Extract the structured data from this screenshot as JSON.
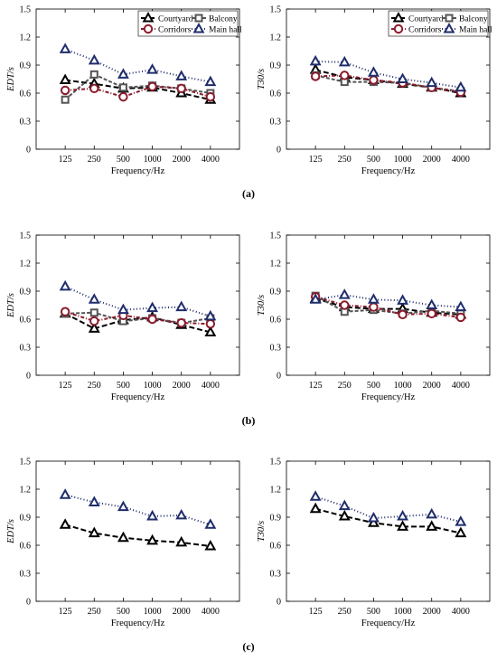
{
  "figure": {
    "panel_labels": [
      "(a)",
      "(b)",
      "(c)"
    ]
  },
  "styles": {
    "Courtyard": {
      "color": "#000000",
      "dash": "6,3",
      "marker": "triangle-open"
    },
    "Balcony": {
      "color": "#555555",
      "dash": "4,2",
      "marker": "square-open"
    },
    "Corridors": {
      "color": "#8b1a2b",
      "dash": "4,2,1,2",
      "marker": "circle-open"
    },
    "Main hall": {
      "color": "#1f2d6b",
      "dash": "1,2.5",
      "marker": "triangle-open"
    }
  },
  "chart_data": [
    {
      "type": "line",
      "panel": "(a)",
      "xlabel": "Frequency/Hz",
      "ylabel": "EDT/s",
      "categories": [
        "125",
        "250",
        "500",
        "1000",
        "2000",
        "4000"
      ],
      "ylim": [
        0,
        1.5
      ],
      "yticks": [
        "0",
        "0.3",
        "0.6",
        "0.9",
        "1.2",
        "1.5"
      ],
      "grid": false,
      "legend": "top-right",
      "series": [
        {
          "name": "Courtyard",
          "values": [
            0.74,
            0.7,
            0.65,
            0.66,
            0.6,
            0.53
          ]
        },
        {
          "name": "Balcony",
          "values": [
            0.53,
            0.8,
            0.66,
            0.68,
            0.65,
            0.6
          ]
        },
        {
          "name": "Corridors",
          "values": [
            0.63,
            0.65,
            0.56,
            0.67,
            0.65,
            0.56
          ]
        },
        {
          "name": "Main hall",
          "values": [
            1.07,
            0.95,
            0.8,
            0.85,
            0.78,
            0.72
          ]
        }
      ]
    },
    {
      "type": "line",
      "panel": "(a)",
      "xlabel": "Frequency/Hz",
      "ylabel": "T30/s",
      "categories": [
        "125",
        "250",
        "500",
        "1000",
        "2000",
        "4000"
      ],
      "ylim": [
        0,
        1.5
      ],
      "yticks": [
        "0",
        "0.3",
        "0.6",
        "0.9",
        "1.2",
        "1.5"
      ],
      "grid": false,
      "legend": "top-right",
      "series": [
        {
          "name": "Courtyard",
          "values": [
            0.85,
            0.77,
            0.74,
            0.7,
            0.66,
            0.6
          ]
        },
        {
          "name": "Balcony",
          "values": [
            0.79,
            0.72,
            0.72,
            0.71,
            0.66,
            0.62
          ]
        },
        {
          "name": "Corridors",
          "values": [
            0.78,
            0.79,
            0.74,
            0.71,
            0.66,
            0.61
          ]
        },
        {
          "name": "Main hall",
          "values": [
            0.94,
            0.93,
            0.82,
            0.75,
            0.71,
            0.66
          ]
        }
      ]
    },
    {
      "type": "line",
      "panel": "(b)",
      "xlabel": "Frequency/Hz",
      "ylabel": "EDT/s",
      "categories": [
        "125",
        "250",
        "500",
        "1000",
        "2000",
        "4000"
      ],
      "ylim": [
        0,
        1.5
      ],
      "yticks": [
        "0",
        "0.3",
        "0.6",
        "0.9",
        "1.2",
        "1.5"
      ],
      "grid": false,
      "series": [
        {
          "name": "Courtyard",
          "values": [
            0.66,
            0.5,
            0.59,
            0.62,
            0.54,
            0.46
          ]
        },
        {
          "name": "Balcony",
          "values": [
            0.66,
            0.67,
            0.58,
            0.61,
            0.56,
            0.61
          ]
        },
        {
          "name": "Corridors",
          "values": [
            0.68,
            0.58,
            0.64,
            0.6,
            0.56,
            0.55
          ]
        },
        {
          "name": "Main hall",
          "values": [
            0.95,
            0.81,
            0.7,
            0.72,
            0.73,
            0.63
          ]
        }
      ]
    },
    {
      "type": "line",
      "panel": "(b)",
      "xlabel": "Frequency/Hz",
      "ylabel": "T30/s",
      "categories": [
        "125",
        "250",
        "500",
        "1000",
        "2000",
        "4000"
      ],
      "ylim": [
        0,
        1.5
      ],
      "yticks": [
        "0",
        "0.3",
        "0.6",
        "0.9",
        "1.2",
        "1.5"
      ],
      "grid": false,
      "series": [
        {
          "name": "Courtyard",
          "values": [
            0.82,
            0.73,
            0.71,
            0.71,
            0.67,
            0.65
          ]
        },
        {
          "name": "Balcony",
          "values": [
            0.85,
            0.68,
            0.7,
            0.66,
            0.69,
            0.66
          ]
        },
        {
          "name": "Corridors",
          "values": [
            0.84,
            0.75,
            0.73,
            0.65,
            0.66,
            0.62
          ]
        },
        {
          "name": "Main hall",
          "values": [
            0.81,
            0.86,
            0.81,
            0.8,
            0.75,
            0.73
          ]
        }
      ]
    },
    {
      "type": "line",
      "panel": "(c)",
      "xlabel": "Frequency/Hz",
      "ylabel": "EDT/s",
      "categories": [
        "125",
        "250",
        "500",
        "1000",
        "2000",
        "4000"
      ],
      "ylim": [
        0,
        1.5
      ],
      "yticks": [
        "0",
        "0.3",
        "0.6",
        "0.9",
        "1.2",
        "1.5"
      ],
      "grid": false,
      "series": [
        {
          "name": "Courtyard",
          "values": [
            0.82,
            0.73,
            0.68,
            0.65,
            0.63,
            0.59
          ]
        },
        {
          "name": "Main hall",
          "values": [
            1.14,
            1.06,
            1.01,
            0.91,
            0.92,
            0.82
          ]
        }
      ]
    },
    {
      "type": "line",
      "panel": "(c)",
      "xlabel": "Frequency/Hz",
      "ylabel": "T30/s",
      "categories": [
        "125",
        "250",
        "500",
        "1000",
        "2000",
        "4000"
      ],
      "ylim": [
        0,
        1.5
      ],
      "yticks": [
        "0",
        "0.3",
        "0.6",
        "0.9",
        "1.2",
        "1.5"
      ],
      "grid": false,
      "series": [
        {
          "name": "Courtyard",
          "values": [
            0.99,
            0.91,
            0.84,
            0.8,
            0.8,
            0.73
          ]
        },
        {
          "name": "Main hall",
          "values": [
            1.12,
            1.02,
            0.89,
            0.91,
            0.93,
            0.85
          ]
        }
      ]
    }
  ]
}
